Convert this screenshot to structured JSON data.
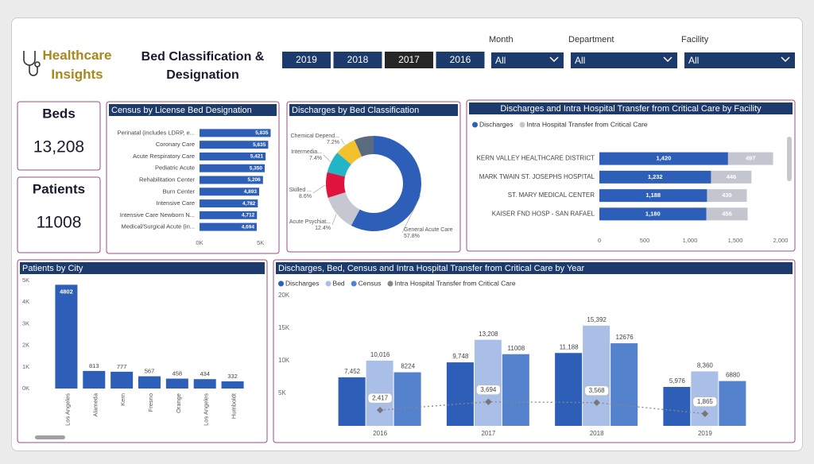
{
  "header": {
    "brand": "Healthcare Insights",
    "title": "Bed Classification & Designation"
  },
  "year_buttons": {
    "items": [
      "2019",
      "2018",
      "2017",
      "2016"
    ],
    "selected": "2017"
  },
  "filters": [
    {
      "label": "Month",
      "value": "All"
    },
    {
      "label": "Department",
      "value": "All"
    },
    {
      "label": "Facility",
      "value": "All"
    }
  ],
  "cards": [
    {
      "label": "Beds",
      "value": "13,208"
    },
    {
      "label": "Patients",
      "value": "11008"
    }
  ],
  "chart_data": [
    {
      "type": "bar",
      "horizontal": true,
      "title": "Census by License Bed Designation",
      "categories": [
        "Perinatal (includes LDRP, e...",
        "Coronary Care",
        "Acute Respiratory Care",
        "Pediatric Acute",
        "Rehabilitation Center",
        "Burn Center",
        "Intensive Care",
        "Intensive Care Newborn N...",
        "Medical/Surgical Acute (in..."
      ],
      "values": [
        5835,
        5635,
        5421,
        5350,
        5206,
        4893,
        4782,
        4712,
        4694
      ],
      "value_labels": [
        "5,835",
        "5,635",
        "5,421",
        "5,350",
        "5,206",
        "4,893",
        "4,782",
        "4,712",
        "4,694"
      ],
      "color": "#2e5fb8",
      "xlim": [
        0,
        6000
      ],
      "xticks": [
        {
          "value": 0,
          "label": "0K"
        },
        {
          "value": 5000,
          "label": "5K"
        }
      ]
    },
    {
      "type": "pie",
      "donut": true,
      "title": "Discharges by Bed Classification",
      "categories": [
        "General Acute Care",
        "Acute Psychiat...",
        "Skilled ...",
        "Intermedia...",
        "Chemical Depend...",
        null
      ],
      "values": [
        57.8,
        12.4,
        8.6,
        7.4,
        7.2,
        6.6
      ],
      "value_labels": [
        "57.8%",
        "12.4%",
        "8.6%",
        "7.4%",
        "7.2%",
        null
      ],
      "colors": [
        "#2e5fb8",
        "#c5c8d0",
        "#e0143c",
        "#22b5c8",
        "#f2c12e",
        "#5a6b80"
      ]
    },
    {
      "type": "bar",
      "horizontal": true,
      "stacked": true,
      "title": "Discharges and Intra Hospital Transfer from Critical Care by Facility",
      "categories": [
        "KERN VALLEY HEALTHCARE DISTRICT",
        "MARK TWAIN ST. JOSEPHS HOSPITAL",
        "ST. MARY MEDICAL CENTER",
        "KAISER FND HOSP - SAN RAFAEL"
      ],
      "series": [
        {
          "name": "Discharges",
          "color": "#2e5fb8",
          "values": [
            1420,
            1232,
            1188,
            1180
          ],
          "value_labels": [
            "1,420",
            "1,232",
            "1,188",
            "1,180"
          ]
        },
        {
          "name": "Intra Hospital Transfer from Critical Care",
          "color": "#c3c6cf",
          "values": [
            497,
            446,
            439,
            456
          ]
        }
      ],
      "xlim": [
        0,
        2000
      ],
      "xticks": [
        0,
        500,
        {
          "value": 1000,
          "label": "1,000"
        },
        {
          "value": 1500,
          "label": "1,500"
        },
        {
          "value": 2000,
          "label": "2,000"
        }
      ],
      "legend": "top-left"
    },
    {
      "type": "bar",
      "title": "Patients by City",
      "categories": [
        "Los Angeles",
        "Alameda",
        "Kern",
        "Fresno",
        "Orange",
        "Los Angeles",
        "Humboldt"
      ],
      "values": [
        4802,
        813,
        777,
        567,
        458,
        434,
        332
      ],
      "color": "#2e5fb8",
      "ylim": [
        0,
        5000
      ],
      "yticks": [
        {
          "value": 0,
          "label": "0K"
        },
        {
          "value": 1000,
          "label": "1K"
        },
        {
          "value": 2000,
          "label": "2K"
        },
        {
          "value": 3000,
          "label": "3K"
        },
        {
          "value": 4000,
          "label": "4K"
        },
        {
          "value": 5000,
          "label": "5K"
        }
      ]
    },
    {
      "type": "combo",
      "title": "Discharges, Bed, Census and Intra Hospital Transfer from Critical Care by Year",
      "categories": [
        "2016",
        "2017",
        "2018",
        "2019"
      ],
      "series": [
        {
          "name": "Discharges",
          "type": "bar",
          "color": "#2e5fb8",
          "values": [
            7452,
            9748,
            11188,
            5976
          ],
          "value_labels": [
            "7,452",
            "9,748",
            "11,188",
            "5,976"
          ]
        },
        {
          "name": "Bed",
          "type": "bar",
          "color": "#a9bfe8",
          "values": [
            10016,
            13208,
            15392,
            8360
          ],
          "value_labels": [
            "10,016",
            "13,208",
            "15,392",
            "8,360"
          ]
        },
        {
          "name": "Census",
          "type": "bar",
          "color": "#5582cc",
          "values": [
            8224,
            11008,
            12676,
            6880
          ]
        },
        {
          "name": "Intra Hospital Transfer from Critical Care",
          "type": "line",
          "color": "#888888",
          "values": [
            2417,
            3694,
            3568,
            1865
          ],
          "value_labels": [
            "2,417",
            "3,694",
            "3,568",
            "1,865"
          ]
        }
      ],
      "ylim": [
        0,
        20000
      ],
      "yticks": [
        {
          "value": 5000,
          "label": "5K"
        },
        {
          "value": 10000,
          "label": "10K"
        },
        {
          "value": 15000,
          "label": "15K"
        },
        {
          "value": 20000,
          "label": "20K"
        }
      ],
      "legend": "top-left"
    }
  ]
}
